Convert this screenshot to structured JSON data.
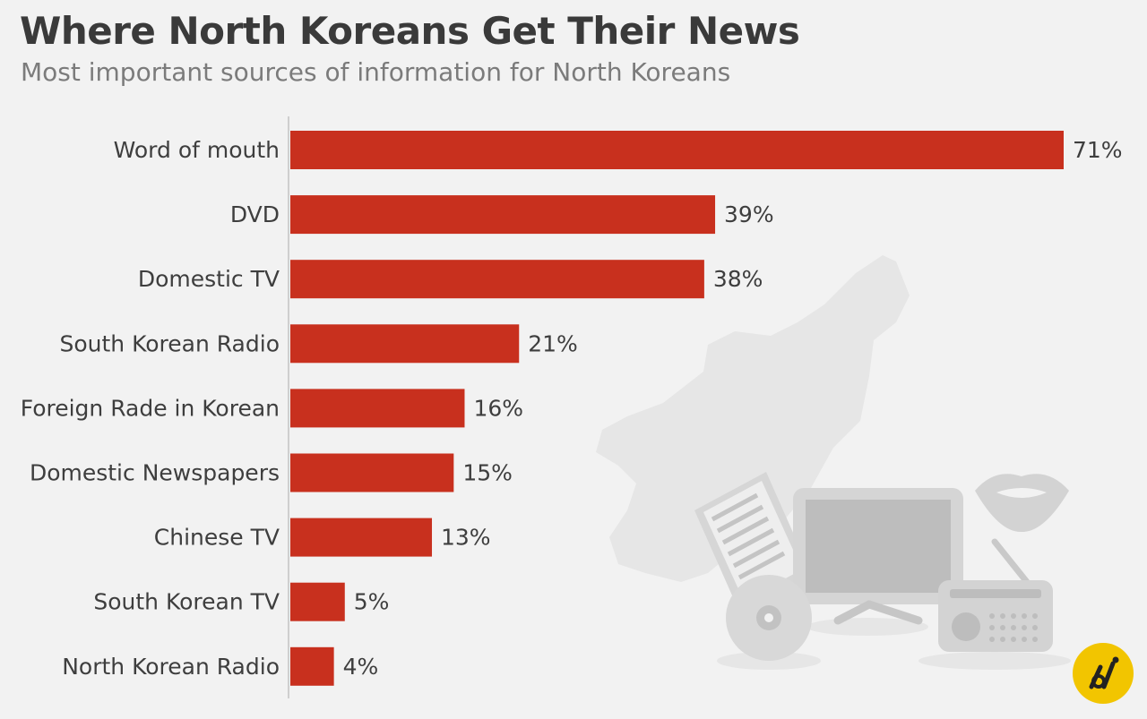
{
  "colors": {
    "background": "#f2f2f2",
    "bar": "#c8301e",
    "title": "#3a3a3a",
    "subtitle": "#7b7b7b",
    "axis": "#cfcfcf",
    "logo": "#f2c500"
  },
  "icons": [
    "north-korea-map-icon",
    "newspaper-icon",
    "tv-icon",
    "lips-icon",
    "dvd-icon",
    "radio-icon",
    "logo-icon"
  ],
  "chart_data": {
    "type": "bar",
    "orientation": "horizontal",
    "title": "Where North Koreans Get Their News",
    "subtitle": "Most important sources of information for North Koreans",
    "categories": [
      "Word of mouth",
      "DVD",
      "Domestic TV",
      "South Korean Radio",
      "Foreign Rade in Korean",
      "Domestic Newspapers",
      "Chinese TV",
      "South Korean TV",
      "North Korean Radio"
    ],
    "values": [
      71,
      39,
      38,
      21,
      16,
      15,
      13,
      5,
      4
    ],
    "value_labels": [
      "71%",
      "39%",
      "38%",
      "21%",
      "16%",
      "15%",
      "13%",
      "5%",
      "4%"
    ],
    "unit": "%",
    "xlim": [
      0,
      71
    ],
    "grid": false,
    "legend": "none"
  }
}
